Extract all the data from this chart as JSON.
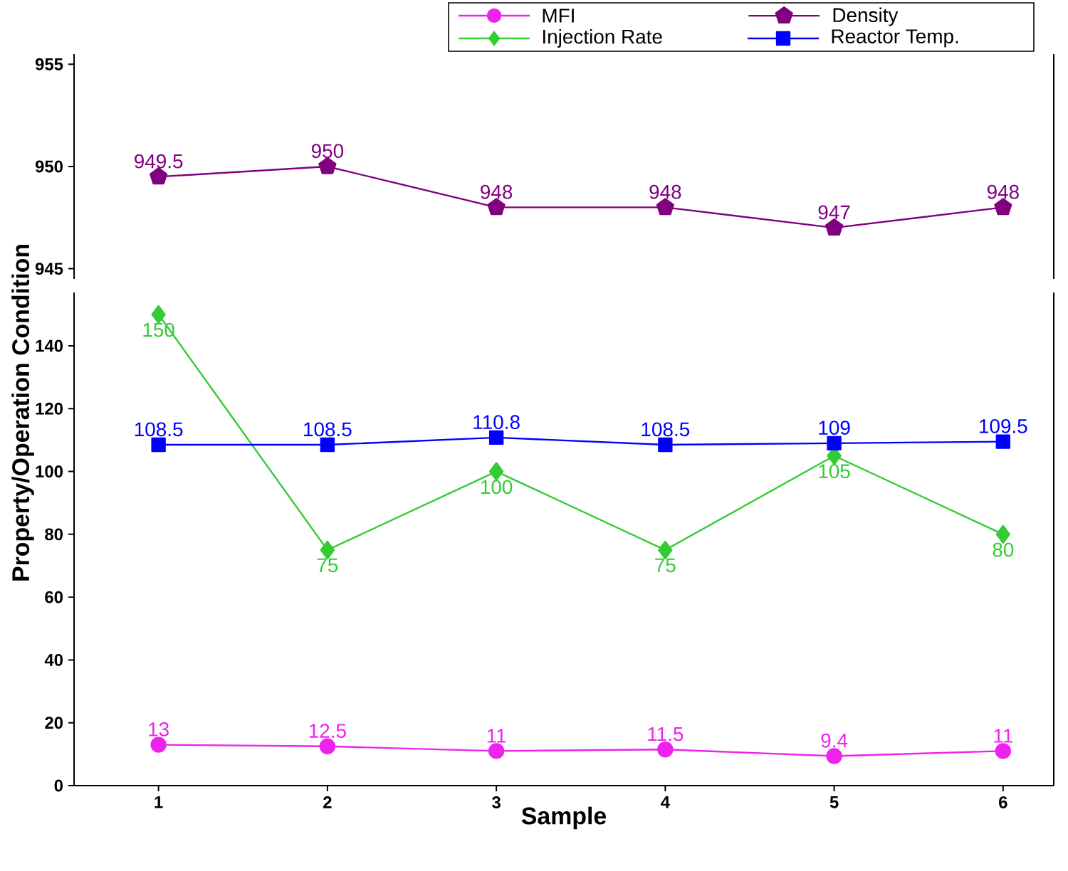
{
  "chart_data": [
    {
      "type": "line",
      "x": [
        1,
        2,
        3,
        4,
        5,
        6
      ],
      "xlim": [
        0.5,
        6.3
      ],
      "ylim": [
        944.5,
        955.5
      ],
      "yticks": [
        945,
        950,
        955
      ],
      "tick_labels": "y",
      "data_labels": true,
      "legend": "top right",
      "series": [
        {
          "name": "Density",
          "color": "#800080",
          "marker": "star",
          "values": [
            949.5,
            950,
            948,
            948,
            947,
            948
          ]
        }
      ]
    },
    {
      "type": "line",
      "x": [
        1,
        2,
        3,
        4,
        5,
        6
      ],
      "xlim": [
        0.5,
        6.3
      ],
      "xticks": [
        1,
        2,
        3,
        4,
        5,
        6
      ],
      "ylim": [
        0,
        157
      ],
      "yticks": [
        0,
        20,
        40,
        60,
        80,
        100,
        120,
        140
      ],
      "xlabel": "Sample",
      "legend": "top right",
      "ylabel": "Property/Operation Condition",
      "data_labels": true,
      "series": [
        {
          "name": "MFI",
          "color": "#ee22ee",
          "marker": "circle",
          "values": [
            13,
            12.5,
            11,
            11.5,
            9.4,
            11
          ]
        },
        {
          "name": "Injection Rate",
          "color": "#33cc33",
          "marker": "diamond",
          "values": [
            150,
            75,
            100,
            75,
            105,
            80
          ]
        },
        {
          "name": "Reactor Temp.",
          "color": "#0000ff",
          "marker": "square",
          "values": [
            108.5,
            108.5,
            110.8,
            108.5,
            109,
            109.5
          ]
        }
      ]
    }
  ]
}
